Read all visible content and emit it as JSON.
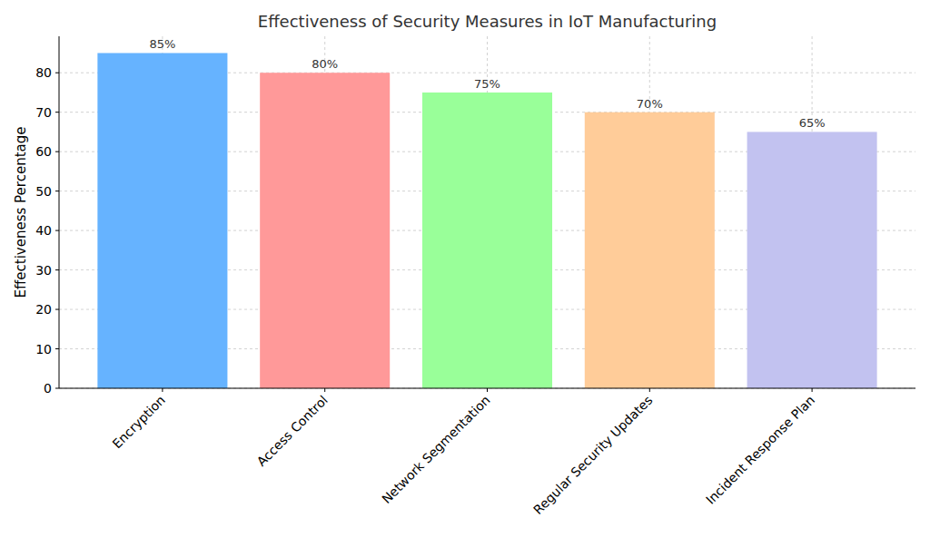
{
  "chart_data": {
    "type": "bar",
    "title": "Effectiveness of Security Measures in IoT Manufacturing",
    "y_label": "Effectiveness Percentage",
    "categories": [
      "Encryption",
      "Access Control",
      "Network Segmentation",
      "Regular Security Updates",
      "Incident Response Plan"
    ],
    "values": [
      85,
      80,
      75,
      70,
      65
    ],
    "value_labels": [
      "85%",
      "80%",
      "75%",
      "70%",
      "65%"
    ],
    "colors": [
      "#66b3ff",
      "#ff9999",
      "#99ff99",
      "#ffcc99",
      "#c2c2f0"
    ],
    "ylim": [
      0,
      89.25
    ],
    "yticks": [
      0,
      10,
      20,
      30,
      40,
      50,
      60,
      70,
      80
    ],
    "grid": true,
    "data_labels": true
  }
}
